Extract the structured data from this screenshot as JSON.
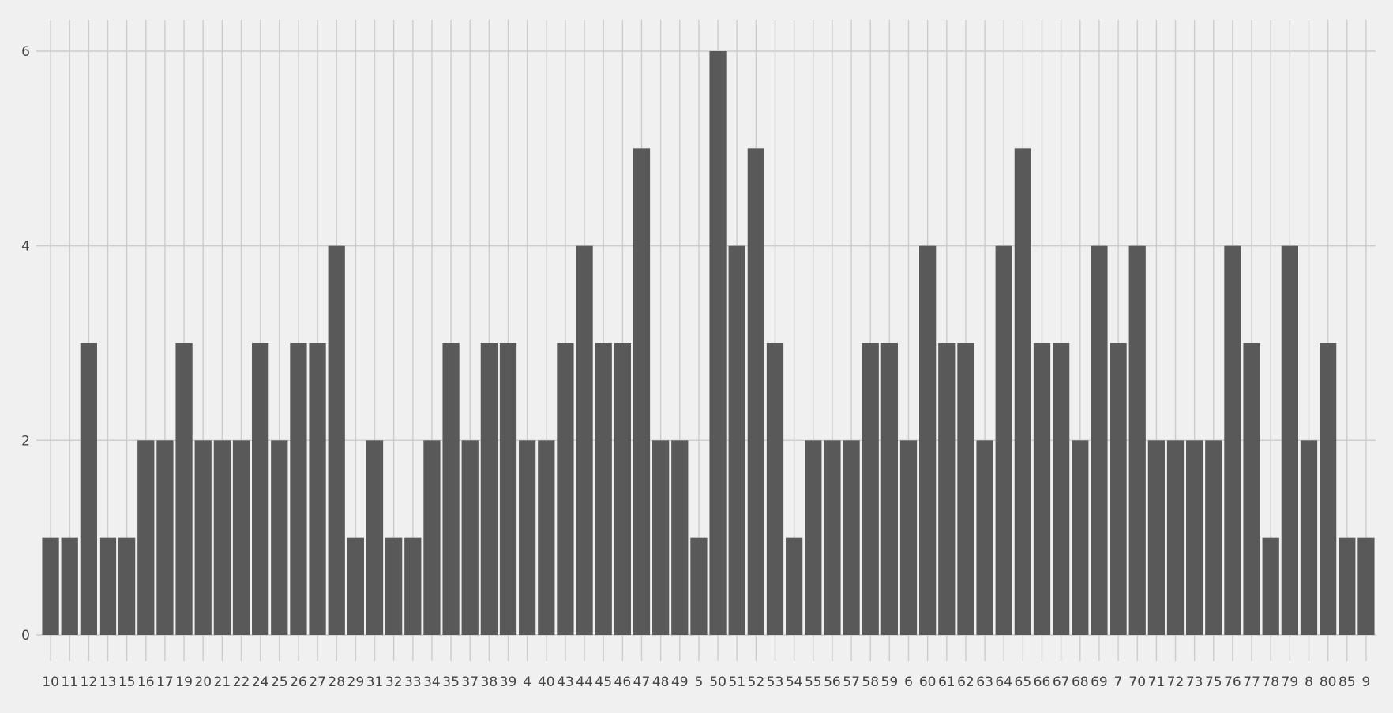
{
  "chart_data": {
    "type": "bar",
    "title": "",
    "xlabel": "",
    "ylabel": "",
    "ylim": [
      0,
      6
    ],
    "yticks": [
      0,
      2,
      4,
      6
    ],
    "grid": true,
    "bar_color": "#595959",
    "background": "#f0f0f0",
    "grid_color": "#cccccc",
    "categories": [
      "10",
      "11",
      "12",
      "13",
      "15",
      "16",
      "17",
      "19",
      "20",
      "21",
      "22",
      "24",
      "25",
      "26",
      "27",
      "28",
      "29",
      "31",
      "32",
      "33",
      "34",
      "35",
      "37",
      "38",
      "39",
      "4",
      "40",
      "43",
      "44",
      "45",
      "46",
      "47",
      "48",
      "49",
      "5",
      "50",
      "51",
      "52",
      "53",
      "54",
      "55",
      "56",
      "57",
      "58",
      "59",
      "6",
      "60",
      "61",
      "62",
      "63",
      "64",
      "65",
      "66",
      "67",
      "68",
      "69",
      "7",
      "70",
      "71",
      "72",
      "73",
      "75",
      "76",
      "77",
      "78",
      "79",
      "8",
      "80",
      "85",
      "9"
    ],
    "values": [
      1,
      1,
      3,
      1,
      1,
      2,
      2,
      3,
      2,
      2,
      2,
      3,
      2,
      3,
      3,
      4,
      1,
      2,
      1,
      1,
      2,
      3,
      2,
      3,
      3,
      2,
      2,
      3,
      4,
      3,
      3,
      5,
      2,
      2,
      1,
      6,
      4,
      5,
      3,
      1,
      2,
      2,
      2,
      3,
      3,
      2,
      4,
      3,
      3,
      2,
      4,
      5,
      3,
      3,
      2,
      4,
      3,
      4,
      2,
      2,
      2,
      2,
      4,
      3,
      1,
      4,
      2,
      3,
      1,
      1
    ]
  }
}
